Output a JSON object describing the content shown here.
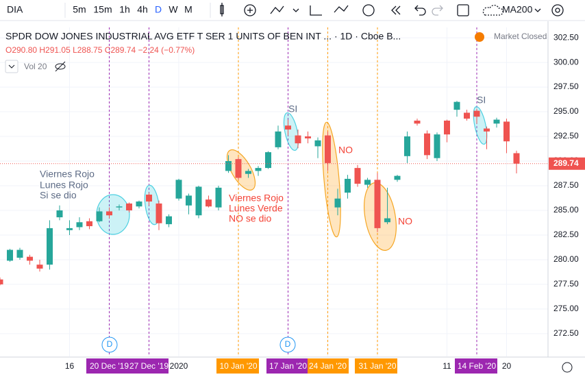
{
  "toolbar": {
    "symbol": "DIA",
    "intervals": [
      "5m",
      "15m",
      "1h",
      "4h",
      "D",
      "W",
      "M"
    ],
    "template": "MA200"
  },
  "chart_data": {
    "type": "candlestick",
    "title": "SPDR DOW JONES INDUSTRIAL AVG ETF T SER 1 UNITS OF BEN INT ... · 1D · Cboe B...",
    "ohlc_legend": "O290.80 H291.05 L288.75 C289.74 −2.24 (−0.77%)",
    "indicator": "Vol 20",
    "status": "Market Closed",
    "event_marker": "D",
    "categories": [
      null,
      null,
      null,
      null,
      null,
      null,
      null,
      "16",
      null,
      null,
      null,
      "20 Dec '19",
      null,
      null,
      null,
      "27 Dec '19",
      null,
      null,
      "2020",
      null,
      null,
      null,
      null,
      null,
      "10 Jan '20",
      null,
      null,
      null,
      null,
      "17 Jan '20",
      null,
      null,
      null,
      "24 Jan '20",
      null,
      null,
      null,
      null,
      "31 Jan '20",
      null,
      null,
      null,
      null,
      null,
      null,
      "11",
      null,
      null,
      "14 Feb '20",
      null,
      null,
      "20",
      null
    ],
    "open": [
      278,
      279.9,
      280.2,
      280.3,
      279.5,
      279.5,
      284.3,
      283,
      283.3,
      283.9,
      283.9,
      284.9,
      285.3,
      285.7,
      285.4,
      286.6,
      285.7,
      283.6,
      286.2,
      285.5,
      284.5,
      286.1,
      285.3,
      289,
      290.2,
      288.7,
      289,
      289.3,
      291.4,
      293.6,
      292.6,
      292.5,
      291.5,
      292.6,
      285.3,
      286.8,
      289.3,
      287.6,
      288.1,
      283.8,
      288.1,
      290.5,
      294.1,
      292.8,
      290.3,
      294.1,
      295.2,
      294.9,
      295.1,
      293.3,
      293.8,
      294,
      290.8
    ],
    "high": [
      278.2,
      281.1,
      281.2,
      280.5,
      280,
      284,
      285.5,
      284,
      284.3,
      284.2,
      285.3,
      285.3,
      285.6,
      285.8,
      286,
      286.8,
      286,
      284.6,
      288.2,
      286.7,
      287.5,
      286.5,
      287.5,
      290.6,
      290.4,
      289.2,
      289.5,
      291,
      293.6,
      294.2,
      293.2,
      293,
      292.4,
      293,
      287.2,
      288.6,
      289.6,
      288.3,
      288.8,
      287.3,
      288.6,
      293,
      294.3,
      293.1,
      292.9,
      294.2,
      296.1,
      295.2,
      295.3,
      293.5,
      294.4,
      294.3,
      291.05
    ],
    "low": [
      277.4,
      279.8,
      280,
      279.5,
      278.8,
      279,
      284,
      282.5,
      283,
      283.1,
      283.8,
      284.2,
      285,
      284.8,
      285.2,
      285.5,
      283,
      283.3,
      286,
      284.6,
      284.2,
      285.3,
      285,
      288.8,
      288.1,
      288.3,
      288.5,
      289.2,
      291.2,
      292.6,
      291.3,
      291.8,
      290.3,
      289,
      284.5,
      286.2,
      287.4,
      287.3,
      282.8,
      283.6,
      287.9,
      289.8,
      293.6,
      290.2,
      290,
      291.9,
      294.5,
      294.1,
      293.8,
      291.2,
      293.4,
      290.8,
      288.75
    ],
    "close": [
      277.5,
      281,
      281,
      279.9,
      279.1,
      283.2,
      285,
      283.2,
      283.8,
      283.4,
      284.9,
      284.5,
      285.4,
      285,
      285.9,
      285.9,
      283.7,
      284.4,
      288.1,
      286.5,
      287.4,
      285.4,
      287.3,
      290,
      288.3,
      289,
      289.3,
      290.9,
      293,
      293.2,
      291.8,
      292.3,
      292.1,
      289.8,
      286.2,
      288.2,
      287.7,
      288.1,
      283.2,
      284.2,
      288.5,
      292.5,
      293.8,
      290.6,
      292.7,
      292.7,
      296,
      294.3,
      294.5,
      293,
      294.2,
      292,
      289.74
    ],
    "up_color": "#26a69a",
    "down_color": "#ef5350",
    "ylim": [
      270.2,
      303.55
    ],
    "yticks": [
      {
        "value": 272.5,
        "label": "272.50"
      },
      {
        "value": 275,
        "label": "275.00"
      },
      {
        "value": 277.5,
        "label": "277.50"
      },
      {
        "value": 280,
        "label": "280.00"
      },
      {
        "value": 282.5,
        "label": "282.50"
      },
      {
        "value": 285,
        "label": "285.00"
      },
      {
        "value": 287.5,
        "label": "287.50"
      },
      {
        "value": 290,
        "label": "290.00"
      },
      {
        "value": 292.5,
        "label": "292.50"
      },
      {
        "value": 295,
        "label": "295.00"
      },
      {
        "value": 297.5,
        "label": "297.50"
      },
      {
        "value": 300,
        "label": "300.00"
      },
      {
        "value": 302.5,
        "label": "302.50"
      }
    ],
    "grid": true,
    "annotations": {
      "left_note": [
        "Viernes Rojo",
        "Lunes Rojo",
        "Si se dio"
      ],
      "mid_note": [
        "Viernes Rojo",
        "Lunes Verde",
        "NO se dio"
      ],
      "si": "SI",
      "no": "NO"
    }
  }
}
